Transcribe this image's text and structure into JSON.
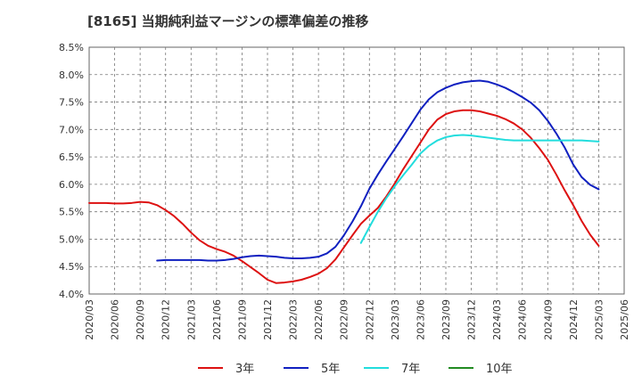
{
  "title": "[8165]  当期純利益マージンの標準偏差の推移",
  "chart_data": {
    "type": "line",
    "title": "[8165]  当期純利益マージンの標準偏差の推移",
    "xlabel": "",
    "ylabel": "",
    "ylim": [
      4.0,
      8.5
    ],
    "y_unit": "%",
    "y_ticks": [
      "4.0%",
      "4.5%",
      "5.0%",
      "5.5%",
      "6.0%",
      "6.5%",
      "7.0%",
      "7.5%",
      "8.0%",
      "8.5%"
    ],
    "x_ticks": [
      "2020/03",
      "2020/06",
      "2020/09",
      "2020/12",
      "2021/03",
      "2021/06",
      "2021/09",
      "2021/12",
      "2022/03",
      "2022/06",
      "2022/09",
      "2022/12",
      "2023/03",
      "2023/06",
      "2023/09",
      "2023/12",
      "2024/03",
      "2024/06",
      "2024/09",
      "2024/12",
      "2025/03",
      "2025/06"
    ],
    "grid": true,
    "legend_position": "bottom",
    "series": [
      {
        "name": "3年",
        "color": "#dd1111",
        "x": [
          "2020/03",
          "2020/04",
          "2020/05",
          "2020/06",
          "2020/07",
          "2020/08",
          "2020/09",
          "2020/10",
          "2020/11",
          "2020/12",
          "2021/01",
          "2021/02",
          "2021/03",
          "2021/04",
          "2021/05",
          "2021/06",
          "2021/07",
          "2021/08",
          "2021/09",
          "2021/10",
          "2021/11",
          "2021/12",
          "2022/01",
          "2022/02",
          "2022/03",
          "2022/04",
          "2022/05",
          "2022/06",
          "2022/07",
          "2022/08",
          "2022/09",
          "2022/10",
          "2022/11",
          "2022/12",
          "2023/01",
          "2023/02",
          "2023/03",
          "2023/04",
          "2023/05",
          "2023/06",
          "2023/07",
          "2023/08",
          "2023/09",
          "2023/10",
          "2023/11",
          "2023/12",
          "2024/01",
          "2024/02",
          "2024/03",
          "2024/04",
          "2024/05",
          "2024/06",
          "2024/07",
          "2024/08",
          "2024/09",
          "2024/10",
          "2024/11",
          "2024/12",
          "2025/01",
          "2025/02",
          "2025/03"
        ],
        "values": [
          5.66,
          5.66,
          5.66,
          5.65,
          5.65,
          5.66,
          5.68,
          5.67,
          5.62,
          5.53,
          5.42,
          5.28,
          5.12,
          4.98,
          4.88,
          4.82,
          4.77,
          4.7,
          4.6,
          4.49,
          4.38,
          4.26,
          4.2,
          4.21,
          4.23,
          4.26,
          4.31,
          4.37,
          4.47,
          4.63,
          4.85,
          5.07,
          5.28,
          5.43,
          5.57,
          5.78,
          6.02,
          6.28,
          6.52,
          6.76,
          7.0,
          7.18,
          7.28,
          7.33,
          7.35,
          7.35,
          7.33,
          7.29,
          7.25,
          7.19,
          7.11,
          7.0,
          6.85,
          6.66,
          6.45,
          6.18,
          5.89,
          5.62,
          5.33,
          5.08,
          4.88
        ]
      },
      {
        "name": "5年",
        "color": "#1020c0",
        "x": [
          "2020/11",
          "2020/12",
          "2021/01",
          "2021/02",
          "2021/03",
          "2021/04",
          "2021/05",
          "2021/06",
          "2021/07",
          "2021/08",
          "2021/09",
          "2021/10",
          "2021/11",
          "2021/12",
          "2022/01",
          "2022/02",
          "2022/03",
          "2022/04",
          "2022/05",
          "2022/06",
          "2022/07",
          "2022/08",
          "2022/09",
          "2022/10",
          "2022/11",
          "2022/12",
          "2023/01",
          "2023/02",
          "2023/03",
          "2023/04",
          "2023/05",
          "2023/06",
          "2023/07",
          "2023/08",
          "2023/09",
          "2023/10",
          "2023/11",
          "2023/12",
          "2024/01",
          "2024/02",
          "2024/03",
          "2024/04",
          "2024/05",
          "2024/06",
          "2024/07",
          "2024/08",
          "2024/09",
          "2024/10",
          "2024/11",
          "2024/12",
          "2025/01",
          "2025/02",
          "2025/03"
        ],
        "values": [
          4.61,
          4.62,
          4.62,
          4.62,
          4.62,
          4.62,
          4.61,
          4.61,
          4.62,
          4.64,
          4.67,
          4.69,
          4.7,
          4.69,
          4.68,
          4.66,
          4.65,
          4.65,
          4.66,
          4.68,
          4.74,
          4.86,
          5.07,
          5.32,
          5.6,
          5.92,
          6.18,
          6.42,
          6.65,
          6.88,
          7.12,
          7.36,
          7.55,
          7.68,
          7.76,
          7.82,
          7.86,
          7.88,
          7.89,
          7.87,
          7.82,
          7.76,
          7.68,
          7.59,
          7.49,
          7.35,
          7.16,
          6.93,
          6.67,
          6.36,
          6.13,
          5.99,
          5.91
        ]
      },
      {
        "name": "7年",
        "color": "#22dddd",
        "x": [
          "2022/11",
          "2022/12",
          "2023/01",
          "2023/02",
          "2023/03",
          "2023/04",
          "2023/05",
          "2023/06",
          "2023/07",
          "2023/08",
          "2023/09",
          "2023/10",
          "2023/11",
          "2023/12",
          "2024/01",
          "2024/02",
          "2024/03",
          "2024/04",
          "2024/05",
          "2024/06",
          "2024/07",
          "2024/08",
          "2024/09",
          "2024/10",
          "2024/11",
          "2024/12",
          "2025/01",
          "2025/02",
          "2025/03"
        ],
        "values": [
          4.93,
          5.22,
          5.5,
          5.75,
          5.97,
          6.17,
          6.36,
          6.56,
          6.7,
          6.8,
          6.86,
          6.89,
          6.9,
          6.89,
          6.87,
          6.85,
          6.83,
          6.81,
          6.8,
          6.8,
          6.8,
          6.8,
          6.8,
          6.8,
          6.8,
          6.8,
          6.8,
          6.79,
          6.78
        ]
      },
      {
        "name": "10年",
        "color": "#228b22",
        "x": [],
        "values": []
      }
    ]
  }
}
